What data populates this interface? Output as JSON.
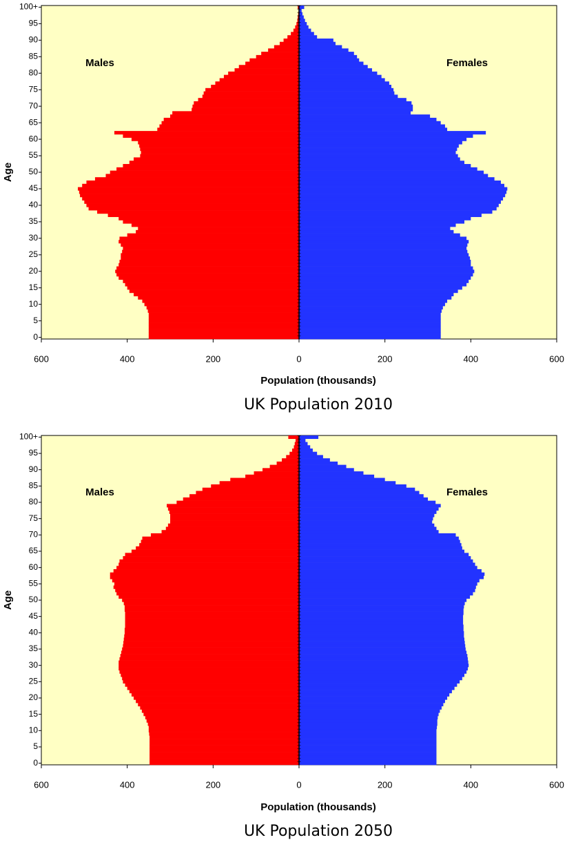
{
  "chart_data": [
    {
      "type": "pyramid",
      "title": "UK Population 2010",
      "xlabel": "Population  (thousands)",
      "ylabel": "Age",
      "categories": [
        "0",
        null,
        null,
        null,
        null,
        "5",
        null,
        null,
        null,
        null,
        "10",
        null,
        null,
        null,
        null,
        "15",
        null,
        null,
        null,
        null,
        "20",
        null,
        null,
        null,
        null,
        "25",
        null,
        null,
        null,
        null,
        "30",
        null,
        null,
        null,
        null,
        "35",
        null,
        null,
        null,
        null,
        "40",
        null,
        null,
        null,
        null,
        "45",
        null,
        null,
        null,
        null,
        "50",
        null,
        null,
        null,
        null,
        "55",
        null,
        null,
        null,
        null,
        "60",
        null,
        null,
        null,
        null,
        "65",
        null,
        null,
        null,
        null,
        "70",
        null,
        null,
        null,
        null,
        "75",
        null,
        null,
        null,
        null,
        "80",
        null,
        null,
        null,
        null,
        "85",
        null,
        null,
        null,
        null,
        "90",
        null,
        null,
        null,
        null,
        "95",
        null,
        null,
        null,
        null,
        "100+"
      ],
      "series": [
        {
          "name": "Males",
          "color": "#ff0000",
          "side": "left",
          "values": [
            350,
            350,
            350,
            350,
            350,
            350,
            350,
            350,
            352,
            355,
            360,
            365,
            375,
            385,
            395,
            400,
            405,
            410,
            420,
            425,
            428,
            425,
            420,
            418,
            415,
            415,
            412,
            410,
            415,
            420,
            418,
            400,
            380,
            375,
            390,
            410,
            420,
            445,
            470,
            490,
            495,
            500,
            505,
            510,
            512,
            515,
            505,
            495,
            475,
            450,
            440,
            425,
            410,
            395,
            385,
            370,
            368,
            370,
            372,
            375,
            390,
            410,
            430,
            330,
            325,
            320,
            315,
            300,
            295,
            250,
            248,
            245,
            235,
            225,
            222,
            218,
            205,
            195,
            185,
            175,
            165,
            150,
            140,
            125,
            115,
            100,
            88,
            72,
            58,
            45,
            36,
            27,
            19,
            13,
            9,
            6,
            4,
            3,
            2,
            1,
            3
          ]
        },
        {
          "name": "Females",
          "color": "#2233ff",
          "side": "right",
          "values": [
            330,
            330,
            330,
            330,
            330,
            330,
            330,
            330,
            332,
            335,
            340,
            345,
            355,
            360,
            370,
            380,
            390,
            395,
            400,
            405,
            408,
            405,
            400,
            400,
            398,
            395,
            392,
            390,
            392,
            395,
            390,
            375,
            360,
            352,
            365,
            385,
            400,
            425,
            450,
            460,
            465,
            470,
            475,
            480,
            483,
            485,
            478,
            470,
            455,
            440,
            430,
            415,
            400,
            385,
            375,
            370,
            365,
            368,
            372,
            380,
            390,
            405,
            435,
            345,
            340,
            330,
            320,
            305,
            260,
            265,
            265,
            262,
            250,
            230,
            222,
            220,
            215,
            210,
            200,
            192,
            182,
            170,
            160,
            150,
            140,
            135,
            128,
            115,
            100,
            85,
            80,
            42,
            35,
            28,
            22,
            18,
            14,
            11,
            8,
            6,
            12
          ]
        }
      ],
      "xlim": [
        -600,
        600
      ],
      "xticks": [
        {
          "value": -600,
          "label": "600"
        },
        {
          "value": -400,
          "label": "400"
        },
        {
          "value": -200,
          "label": "200"
        },
        0,
        200,
        400,
        600
      ],
      "background": "#ffffc4"
    },
    {
      "type": "pyramid",
      "title": "UK Population 2050",
      "xlabel": "Population  (thousands)",
      "ylabel": "Age",
      "categories": [
        "0",
        null,
        null,
        null,
        null,
        "5",
        null,
        null,
        null,
        null,
        "10",
        null,
        null,
        null,
        null,
        "15",
        null,
        null,
        null,
        null,
        "20",
        null,
        null,
        null,
        null,
        "25",
        null,
        null,
        null,
        null,
        "30",
        null,
        null,
        null,
        null,
        "35",
        null,
        null,
        null,
        null,
        "40",
        null,
        null,
        null,
        null,
        "45",
        null,
        null,
        null,
        null,
        "50",
        null,
        null,
        null,
        null,
        "55",
        null,
        null,
        null,
        null,
        "60",
        null,
        null,
        null,
        null,
        "65",
        null,
        null,
        null,
        null,
        "70",
        null,
        null,
        null,
        null,
        "75",
        null,
        null,
        null,
        null,
        "80",
        null,
        null,
        null,
        null,
        "85",
        null,
        null,
        null,
        null,
        "90",
        null,
        null,
        null,
        null,
        "95",
        null,
        null,
        null,
        null,
        "100+"
      ],
      "series": [
        {
          "name": "Males",
          "color": "#ff0000",
          "side": "left",
          "values": [
            348,
            348,
            348,
            348,
            348,
            348,
            348,
            348,
            348,
            349,
            350,
            350,
            352,
            355,
            358,
            362,
            366,
            370,
            375,
            380,
            385,
            390,
            395,
            400,
            405,
            410,
            412,
            415,
            418,
            420,
            420,
            420,
            418,
            416,
            414,
            412,
            410,
            409,
            408,
            407,
            406,
            406,
            405,
            405,
            405,
            405,
            405,
            406,
            406,
            408,
            412,
            420,
            425,
            428,
            432,
            430,
            435,
            440,
            440,
            432,
            425,
            420,
            418,
            410,
            405,
            390,
            380,
            372,
            368,
            365,
            345,
            320,
            310,
            305,
            300,
            300,
            300,
            302,
            305,
            308,
            285,
            270,
            255,
            240,
            225,
            205,
            185,
            160,
            125,
            105,
            85,
            68,
            52,
            40,
            30,
            22,
            16,
            12,
            10,
            8,
            25
          ]
        },
        {
          "name": "Females",
          "color": "#2233ff",
          "side": "right",
          "values": [
            320,
            320,
            320,
            320,
            320,
            320,
            320,
            320,
            320,
            320,
            320,
            321,
            322,
            322,
            323,
            325,
            328,
            332,
            336,
            340,
            345,
            350,
            356,
            362,
            368,
            374,
            380,
            385,
            390,
            393,
            395,
            394,
            393,
            392,
            390,
            388,
            387,
            386,
            385,
            384,
            384,
            383,
            383,
            382,
            382,
            382,
            383,
            383,
            384,
            386,
            390,
            398,
            405,
            410,
            412,
            415,
            420,
            430,
            432,
            425,
            415,
            410,
            405,
            400,
            395,
            385,
            380,
            378,
            375,
            372,
            365,
            325,
            320,
            315,
            310,
            312,
            315,
            320,
            325,
            330,
            318,
            300,
            290,
            280,
            270,
            250,
            225,
            200,
            175,
            150,
            128,
            110,
            90,
            72,
            56,
            42,
            32,
            26,
            20,
            15,
            45
          ]
        }
      ],
      "xlim": [
        -600,
        600
      ],
      "xticks": [
        {
          "value": -600,
          "label": "600"
        },
        {
          "value": -400,
          "label": "400"
        },
        {
          "value": -200,
          "label": "200"
        },
        0,
        200,
        400,
        600
      ],
      "background": "#ffffc4"
    }
  ]
}
